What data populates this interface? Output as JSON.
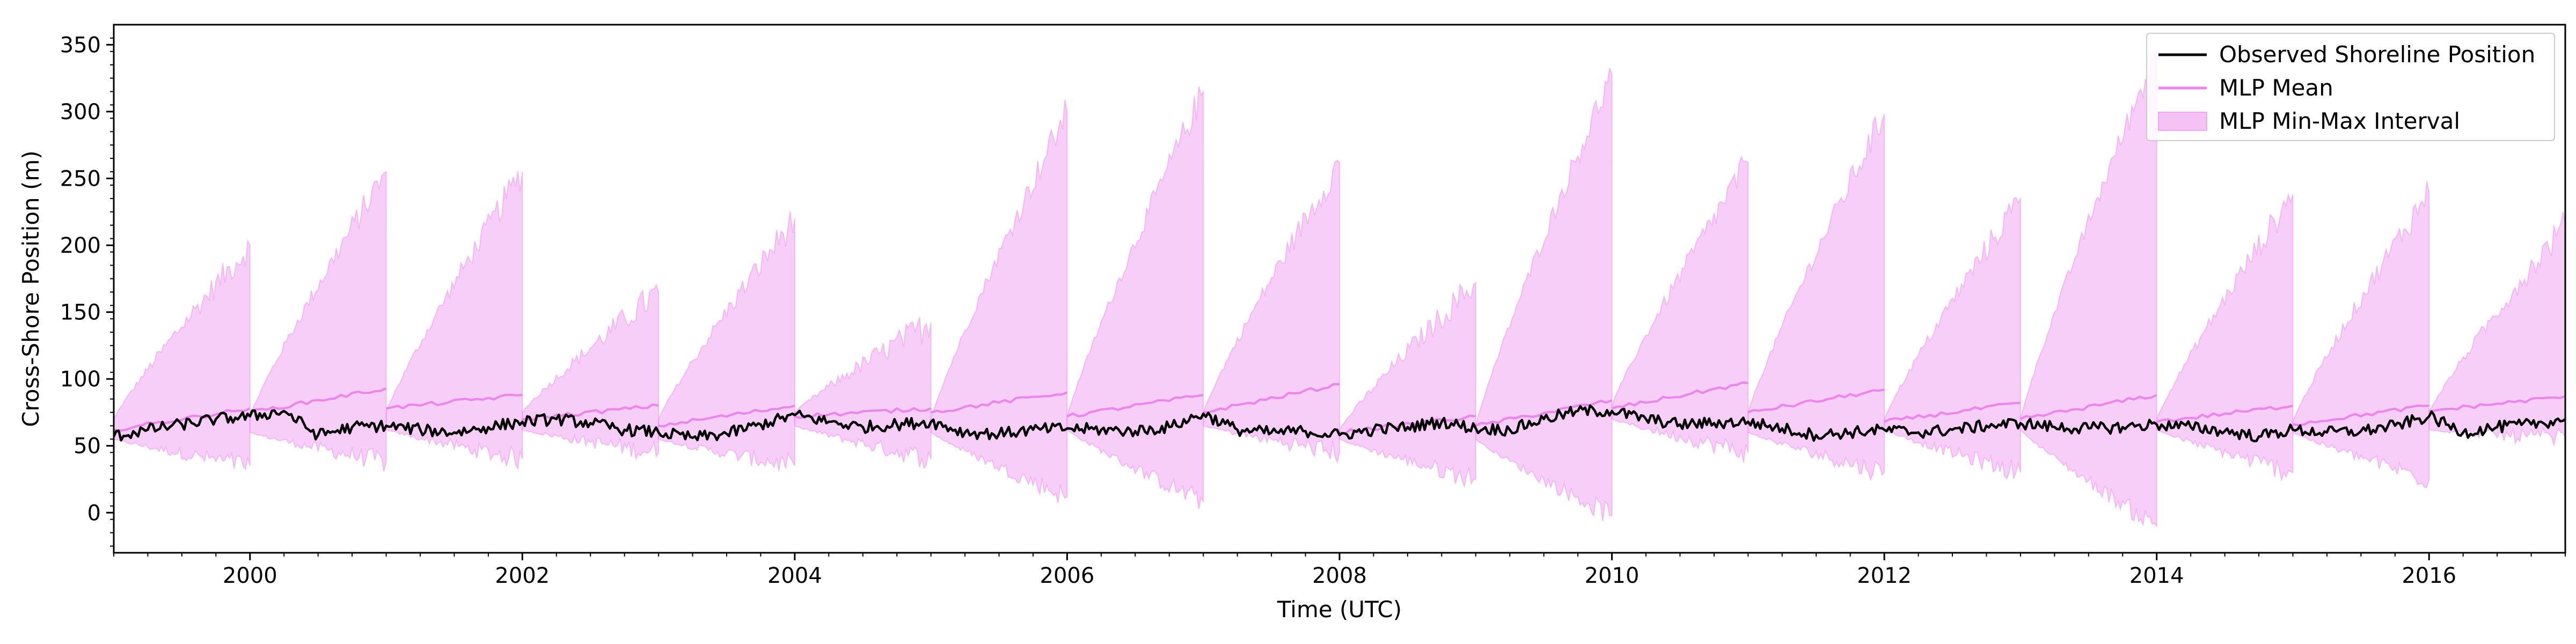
{
  "chart_data": {
    "type": "line",
    "title": "",
    "xlabel": "Time (UTC)",
    "ylabel": "Cross-Shore Position (m)",
    "xlim": [
      1999.0,
      2017.0
    ],
    "ylim": [
      -30,
      365
    ],
    "x_ticks": [
      2000,
      2002,
      2004,
      2006,
      2008,
      2010,
      2012,
      2014,
      2016
    ],
    "x_tick_labels": [
      "2000",
      "2002",
      "2004",
      "2006",
      "2008",
      "2010",
      "2012",
      "2014",
      "2016"
    ],
    "y_ticks": [
      0,
      50,
      100,
      150,
      200,
      250,
      300,
      350
    ],
    "y_tick_labels": [
      "0",
      "50",
      "100",
      "150",
      "200",
      "250",
      "300",
      "350"
    ],
    "grid": false,
    "legend_position": "top-right",
    "colors": {
      "observed": "#000000",
      "mean": "#ee82ee",
      "band_fill": "#f2b3f2",
      "band_edge": "#ee82ee"
    },
    "legend": [
      {
        "label": "Observed Shoreline Position",
        "kind": "line",
        "key": "observed"
      },
      {
        "label": "MLP Mean",
        "kind": "line",
        "key": "mean"
      },
      {
        "label": "MLP Min-Max Interval",
        "kind": "patch",
        "key": "band"
      }
    ],
    "series": [
      {
        "name": "Observed Shoreline Position",
        "x": [
          1999.0,
          1999.25,
          1999.5,
          1999.75,
          2000.0,
          2000.25,
          2000.5,
          2000.75,
          2001.0,
          2001.25,
          2001.5,
          2001.75,
          2002.0,
          2002.25,
          2002.5,
          2002.75,
          2003.0,
          2003.25,
          2003.5,
          2003.75,
          2004.0,
          2004.25,
          2004.5,
          2004.75,
          2005.0,
          2005.25,
          2005.5,
          2005.75,
          2006.0,
          2006.25,
          2006.5,
          2006.75,
          2007.0,
          2007.25,
          2007.5,
          2007.75,
          2008.0,
          2008.25,
          2008.5,
          2008.75,
          2009.0,
          2009.25,
          2009.5,
          2009.75,
          2010.0,
          2010.25,
          2010.5,
          2010.75,
          2011.0,
          2011.25,
          2011.5,
          2011.75,
          2012.0,
          2012.25,
          2012.5,
          2012.75,
          2013.0,
          2013.25,
          2013.5,
          2013.75,
          2014.0,
          2014.25,
          2014.5,
          2014.75,
          2015.0,
          2015.25,
          2015.5,
          2015.75,
          2016.0,
          2016.25,
          2016.5,
          2016.75,
          2017.0
        ],
        "y": [
          57,
          62,
          66,
          70,
          72,
          76,
          58,
          64,
          65,
          62,
          60,
          64,
          68,
          70,
          67,
          62,
          60,
          56,
          59,
          66,
          73,
          68,
          64,
          66,
          68,
          60,
          59,
          62,
          63,
          62,
          61,
          64,
          74,
          62,
          60,
          61,
          58,
          62,
          64,
          68,
          63,
          62,
          70,
          76,
          76,
          70,
          66,
          67,
          68,
          63,
          58,
          60,
          62,
          60,
          62,
          65,
          67,
          64,
          63,
          64,
          66,
          64,
          61,
          57,
          62,
          60,
          61,
          65,
          72,
          60,
          64,
          66,
          70
        ]
      },
      {
        "name": "MLP Mean",
        "segments": [
          {
            "x": [
              1999.0,
              2000.0
            ],
            "y": [
              62,
              78
            ]
          },
          {
            "x": [
              2000.0,
              2001.0
            ],
            "y": [
              75,
              93
            ]
          },
          {
            "x": [
              2001.0,
              2002.0
            ],
            "y": [
              78,
              88
            ]
          },
          {
            "x": [
              2002.0,
              2003.0
            ],
            "y": [
              70,
              80
            ]
          },
          {
            "x": [
              2003.0,
              2004.0
            ],
            "y": [
              65,
              80
            ]
          },
          {
            "x": [
              2004.0,
              2005.0
            ],
            "y": [
              72,
              78
            ]
          },
          {
            "x": [
              2005.0,
              2006.0
            ],
            "y": [
              75,
              90
            ]
          },
          {
            "x": [
              2006.0,
              2007.0
            ],
            "y": [
              72,
              88
            ]
          },
          {
            "x": [
              2007.0,
              2008.0
            ],
            "y": [
              75,
              96
            ]
          },
          {
            "x": [
              2008.0,
              2009.0
            ],
            "y": [
              60,
              72
            ]
          },
          {
            "x": [
              2009.0,
              2010.0
            ],
            "y": [
              65,
              84
            ]
          },
          {
            "x": [
              2010.0,
              2011.0
            ],
            "y": [
              78,
              97
            ]
          },
          {
            "x": [
              2011.0,
              2012.0
            ],
            "y": [
              75,
              92
            ]
          },
          {
            "x": [
              2012.0,
              2013.0
            ],
            "y": [
              68,
              82
            ]
          },
          {
            "x": [
              2013.0,
              2014.0
            ],
            "y": [
              70,
              88
            ]
          },
          {
            "x": [
              2014.0,
              2015.0
            ],
            "y": [
              68,
              80
            ]
          },
          {
            "x": [
              2015.0,
              2016.0
            ],
            "y": [
              66,
              80
            ]
          },
          {
            "x": [
              2016.0,
              2017.0
            ],
            "y": [
              76,
              87
            ]
          }
        ]
      },
      {
        "name": "MLP Min-Max Interval",
        "segments": [
          {
            "x0": 1999.0,
            "x1": 2000.0,
            "max": [
              70,
              200
            ],
            "min": [
              55,
              35
            ]
          },
          {
            "x0": 2000.0,
            "x1": 2001.0,
            "max": [
              72,
              255
            ],
            "min": [
              60,
              38
            ]
          },
          {
            "x0": 2001.0,
            "x1": 2002.0,
            "max": [
              75,
              255
            ],
            "min": [
              62,
              40
            ]
          },
          {
            "x0": 2002.0,
            "x1": 2003.0,
            "max": [
              75,
              165
            ],
            "min": [
              62,
              45
            ]
          },
          {
            "x0": 2003.0,
            "x1": 2004.0,
            "max": [
              70,
              220
            ],
            "min": [
              55,
              35
            ]
          },
          {
            "x0": 2004.0,
            "x1": 2005.0,
            "max": [
              75,
              142
            ],
            "min": [
              65,
              40
            ]
          },
          {
            "x0": 2005.0,
            "x1": 2006.0,
            "max": [
              70,
              300
            ],
            "min": [
              60,
              12
            ]
          },
          {
            "x0": 2006.0,
            "x1": 2007.0,
            "max": [
              72,
              315
            ],
            "min": [
              62,
              8
            ]
          },
          {
            "x0": 2007.0,
            "x1": 2008.0,
            "max": [
              75,
              262
            ],
            "min": [
              65,
              45
            ]
          },
          {
            "x0": 2008.0,
            "x1": 2009.0,
            "max": [
              62,
              172
            ],
            "min": [
              55,
              25
            ]
          },
          {
            "x0": 2009.0,
            "x1": 2010.0,
            "max": [
              65,
              328
            ],
            "min": [
              55,
              -2
            ]
          },
          {
            "x0": 2010.0,
            "x1": 2011.0,
            "max": [
              80,
              262
            ],
            "min": [
              70,
              45
            ]
          },
          {
            "x0": 2011.0,
            "x1": 2012.0,
            "max": [
              75,
              298
            ],
            "min": [
              60,
              30
            ]
          },
          {
            "x0": 2012.0,
            "x1": 2013.0,
            "max": [
              70,
              235
            ],
            "min": [
              62,
              30
            ]
          },
          {
            "x0": 2013.0,
            "x1": 2014.0,
            "max": [
              70,
              345
            ],
            "min": [
              62,
              -10
            ]
          },
          {
            "x0": 2014.0,
            "x1": 2015.0,
            "max": [
              70,
              238
            ],
            "min": [
              62,
              30
            ]
          },
          {
            "x0": 2015.0,
            "x1": 2016.0,
            "max": [
              68,
              240
            ],
            "min": [
              60,
              25
            ]
          },
          {
            "x0": 2016.0,
            "x1": 2017.0,
            "max": [
              75,
              215
            ],
            "min": [
              62,
              55
            ]
          }
        ]
      }
    ]
  }
}
